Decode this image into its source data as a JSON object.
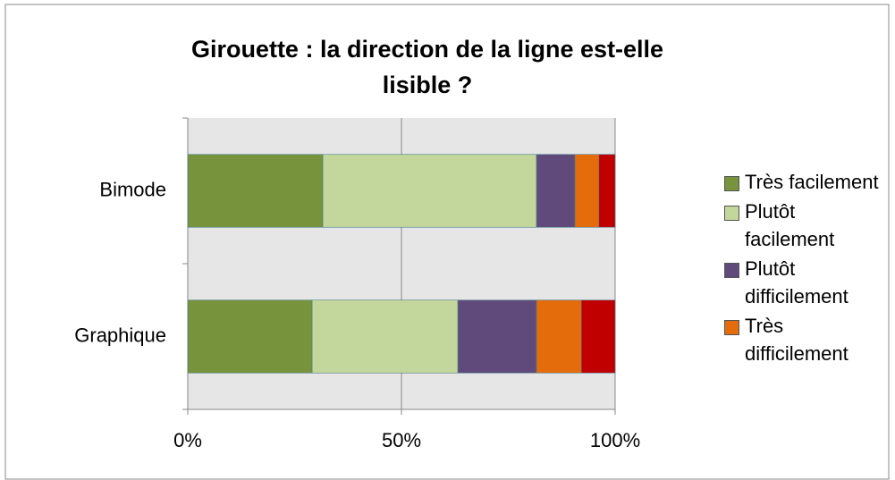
{
  "chart_data": {
    "type": "stacked_bar_horizontal",
    "title": "Girouette : la direction de la ligne est-elle lisible ?",
    "categories": [
      "Bimode",
      "Graphique"
    ],
    "series": [
      {
        "name": "Très facilement",
        "color": "#77933c",
        "values": [
          31.6,
          29.1
        ]
      },
      {
        "name": "Plutôt facilement",
        "color": "#c3d69b",
        "values": [
          50,
          34.1
        ]
      },
      {
        "name": "Plutôt difficilement",
        "color": "#604a7b",
        "values": [
          9,
          18.4
        ]
      },
      {
        "name": "Très difficilement",
        "color": "#e46c0a",
        "values": [
          5.6,
          10.5
        ]
      },
      {
        "color": "#c00000",
        "values": [
          3.8,
          7.9
        ]
      }
    ],
    "xlim": [
      0,
      100
    ],
    "xticks": [
      {
        "value": 0,
        "label": "0%"
      },
      {
        "value": 50,
        "label": "50%"
      },
      {
        "value": 100,
        "label": "100%"
      }
    ],
    "grid": true,
    "legend": "right"
  }
}
